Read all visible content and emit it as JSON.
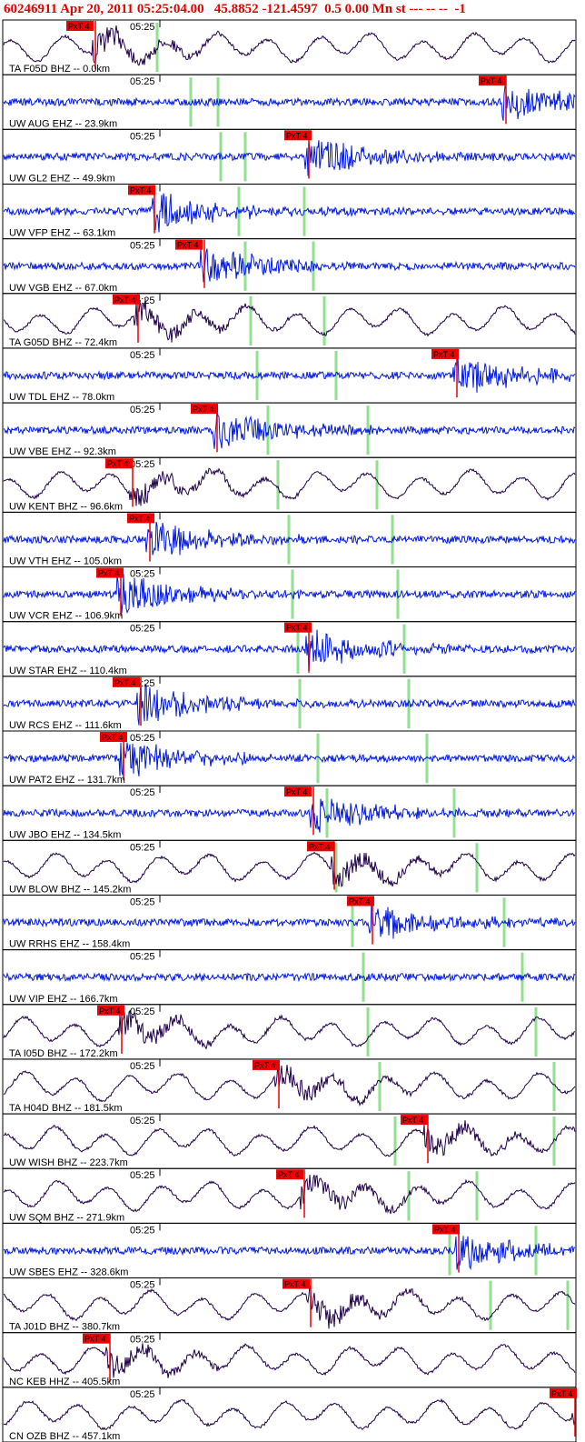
{
  "header": "60246911 Apr 20, 2011 05:25:04.00   45.8852 -121.4597  0.5 0.00 Mn st --- -- --  -1",
  "time_label": "05:25",
  "pick_label": "PxT 4",
  "traces": [
    {
      "label": "TA F05D BHZ -- 0.0km",
      "color": "#200048"
    },
    {
      "label": "UW AUG EHZ -- 23.9km",
      "color": "#0018e0"
    },
    {
      "label": "UW GL2 EHZ -- 49.9km",
      "color": "#0018e0"
    },
    {
      "label": "UW VFP EHZ -- 63.1km",
      "color": "#0018e0"
    },
    {
      "label": "UW VGB EHZ -- 67.0km",
      "color": "#0018e0"
    },
    {
      "label": "TA G05D BHZ -- 72.4km",
      "color": "#200048"
    },
    {
      "label": "UW TDL EHZ -- 78.0km",
      "color": "#0018e0"
    },
    {
      "label": "UW VBE EHZ -- 92.3km",
      "color": "#0018e0"
    },
    {
      "label": "UW KENT BHZ -- 96.6km",
      "color": "#200048"
    },
    {
      "label": "UW VTH EHZ -- 105.0km",
      "color": "#0018e0"
    },
    {
      "label": "UW VCR EHZ -- 106.9km",
      "color": "#0018e0"
    },
    {
      "label": "UW STAR EHZ -- 110.4km",
      "color": "#0018e0"
    },
    {
      "label": "UW RCS EHZ -- 111.6km",
      "color": "#0018e0"
    },
    {
      "label": "UW PAT2 EHZ -- 131.7km",
      "color": "#0018e0"
    },
    {
      "label": "UW JBO EHZ -- 134.5km",
      "color": "#0018e0"
    },
    {
      "label": "UW BLOW BHZ -- 145.2km",
      "color": "#200048"
    },
    {
      "label": "UW RRHS EHZ -- 158.4km",
      "color": "#0018e0"
    },
    {
      "label": "UW VIP EHZ -- 166.7km",
      "color": "#0018e0"
    },
    {
      "label": "TA I05D BHZ -- 172.2km",
      "color": "#200048"
    },
    {
      "label": "TA H04D BHZ -- 181.5km",
      "color": "#200048"
    },
    {
      "label": "UW WISH BHZ -- 223.7km",
      "color": "#200048"
    },
    {
      "label": "UW SQM BHZ -- 271.9km",
      "color": "#200048"
    },
    {
      "label": "UW SBES EHZ -- 328.6km",
      "color": "#0018e0"
    },
    {
      "label": "TA J01D BHZ -- 380.7km",
      "color": "#200048"
    },
    {
      "label": "NC KEB HHZ -- 405.5km",
      "color": "#200048"
    },
    {
      "label": "CN OZB BHZ -- 457.1km",
      "color": "#200048"
    }
  ]
}
